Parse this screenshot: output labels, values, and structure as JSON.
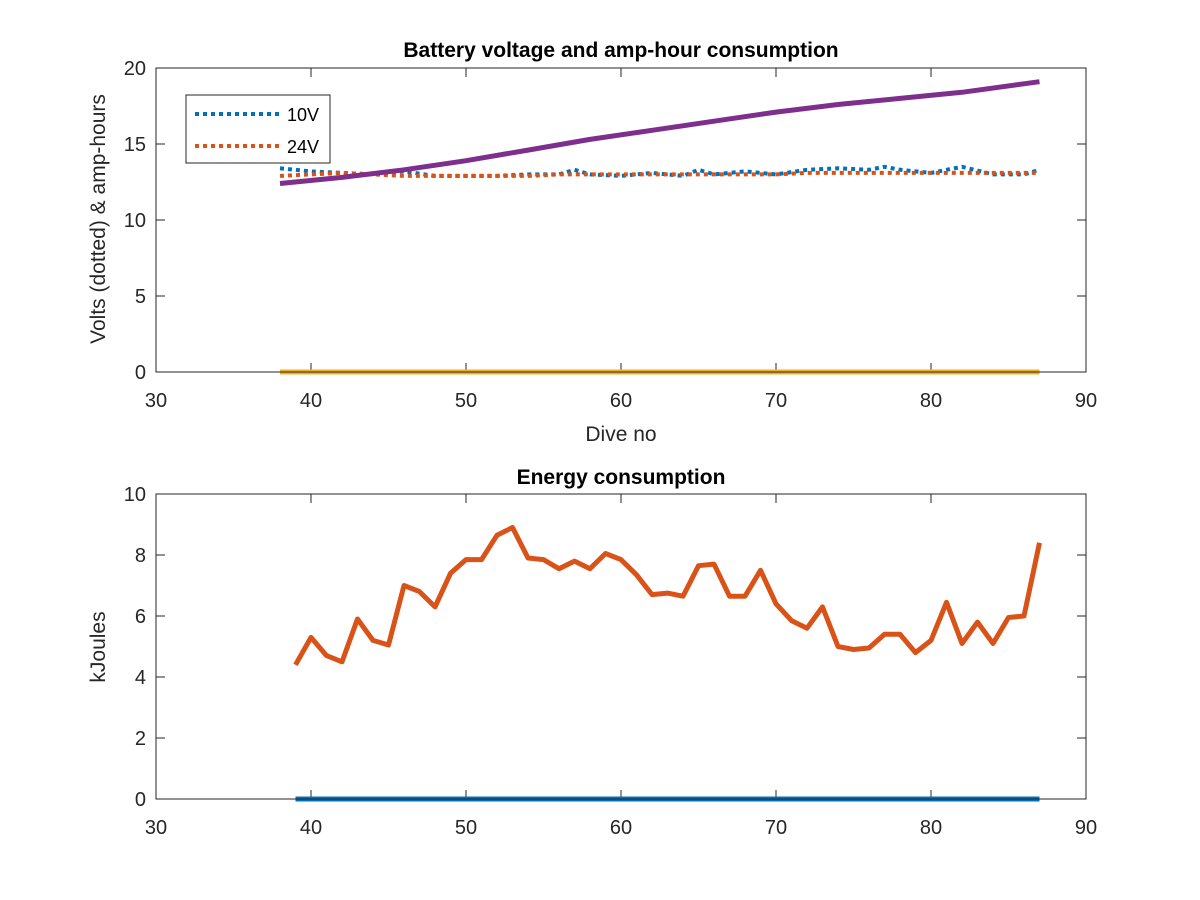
{
  "chart_data": [
    {
      "type": "line",
      "title": "Battery voltage and amp-hour consumption",
      "xlabel": "Dive no",
      "ylabel": "Volts (dotted) & amp-hours",
      "xlim": [
        30,
        90
      ],
      "ylim": [
        0,
        20
      ],
      "xticks": [
        "30",
        "40",
        "50",
        "60",
        "70",
        "80",
        "90"
      ],
      "yticks": [
        "0",
        "5",
        "10",
        "15",
        "20"
      ],
      "legend_position": "top-left",
      "series": [
        {
          "name": "10V",
          "style": "dotted",
          "color": "#0072BD",
          "x": [
            38,
            40,
            42,
            44,
            46,
            48,
            50,
            52,
            54,
            56,
            57,
            58,
            60,
            62,
            64,
            65,
            66,
            68,
            70,
            72,
            74,
            76,
            77,
            78,
            80,
            81,
            82,
            84,
            86,
            87
          ],
          "y": [
            13.4,
            13.2,
            13.1,
            13.0,
            13.2,
            12.9,
            12.9,
            12.9,
            13.0,
            13.0,
            13.3,
            13.0,
            12.9,
            13.1,
            12.9,
            13.3,
            13.0,
            13.2,
            13.0,
            13.3,
            13.4,
            13.3,
            13.5,
            13.3,
            13.1,
            13.3,
            13.5,
            13.0,
            13.0,
            13.3
          ]
        },
        {
          "name": "24V",
          "style": "dotted",
          "color": "#D95319",
          "x": [
            38,
            40,
            42,
            44,
            46,
            48,
            50,
            52,
            54,
            56,
            58,
            60,
            62,
            64,
            66,
            68,
            70,
            72,
            74,
            76,
            78,
            80,
            82,
            84,
            86,
            87
          ],
          "y": [
            12.9,
            13.0,
            13.1,
            13.0,
            12.9,
            12.9,
            12.9,
            12.9,
            12.9,
            13.0,
            13.0,
            13.0,
            13.0,
            13.0,
            13.0,
            13.0,
            13.0,
            13.1,
            13.1,
            13.1,
            13.1,
            13.1,
            13.1,
            13.1,
            13.1,
            13.1
          ]
        },
        {
          "style": "solid",
          "color": "#7E2F8E",
          "x": [
            38,
            42,
            46,
            50,
            54,
            58,
            62,
            66,
            70,
            74,
            78,
            82,
            87
          ],
          "y": [
            12.4,
            12.8,
            13.3,
            13.9,
            14.6,
            15.3,
            15.9,
            16.5,
            17.1,
            17.6,
            18.0,
            18.4,
            19.1
          ]
        },
        {
          "style": "solid",
          "color": "#EDB120",
          "x": [
            38,
            87
          ],
          "y": [
            0,
            0
          ]
        }
      ]
    },
    {
      "type": "line",
      "title": "Energy consumption",
      "xlabel": "",
      "ylabel": "kJoules",
      "xlim": [
        30,
        90
      ],
      "ylim": [
        0,
        10
      ],
      "xticks": [
        "30",
        "40",
        "50",
        "60",
        "70",
        "80",
        "90"
      ],
      "yticks": [
        "0",
        "2",
        "4",
        "6",
        "8",
        "10"
      ],
      "series": [
        {
          "style": "solid",
          "color": "#D95319",
          "x": [
            39,
            40,
            41,
            42,
            43,
            44,
            45,
            46,
            47,
            48,
            49,
            50,
            51,
            52,
            53,
            54,
            55,
            56,
            57,
            58,
            59,
            60,
            61,
            62,
            63,
            64,
            65,
            66,
            67,
            68,
            69,
            70,
            71,
            72,
            73,
            74,
            75,
            76,
            77,
            78,
            79,
            80,
            81,
            82,
            83,
            84,
            85,
            86,
            87
          ],
          "y": [
            4.4,
            5.3,
            4.7,
            4.5,
            5.9,
            5.2,
            5.05,
            7.0,
            6.8,
            6.3,
            7.4,
            7.85,
            7.85,
            8.65,
            8.9,
            7.9,
            7.85,
            7.55,
            7.8,
            7.55,
            8.05,
            7.85,
            7.35,
            6.7,
            6.75,
            6.65,
            7.65,
            7.7,
            6.65,
            6.65,
            7.5,
            6.4,
            5.85,
            5.6,
            6.3,
            5.0,
            4.9,
            4.95,
            5.4,
            5.4,
            4.8,
            5.2,
            6.45,
            5.1,
            5.8,
            5.1,
            5.95,
            6.0,
            8.4
          ]
        },
        {
          "style": "solid",
          "color": "#0072BD",
          "x": [
            39,
            87
          ],
          "y": [
            0,
            0
          ]
        }
      ]
    }
  ]
}
